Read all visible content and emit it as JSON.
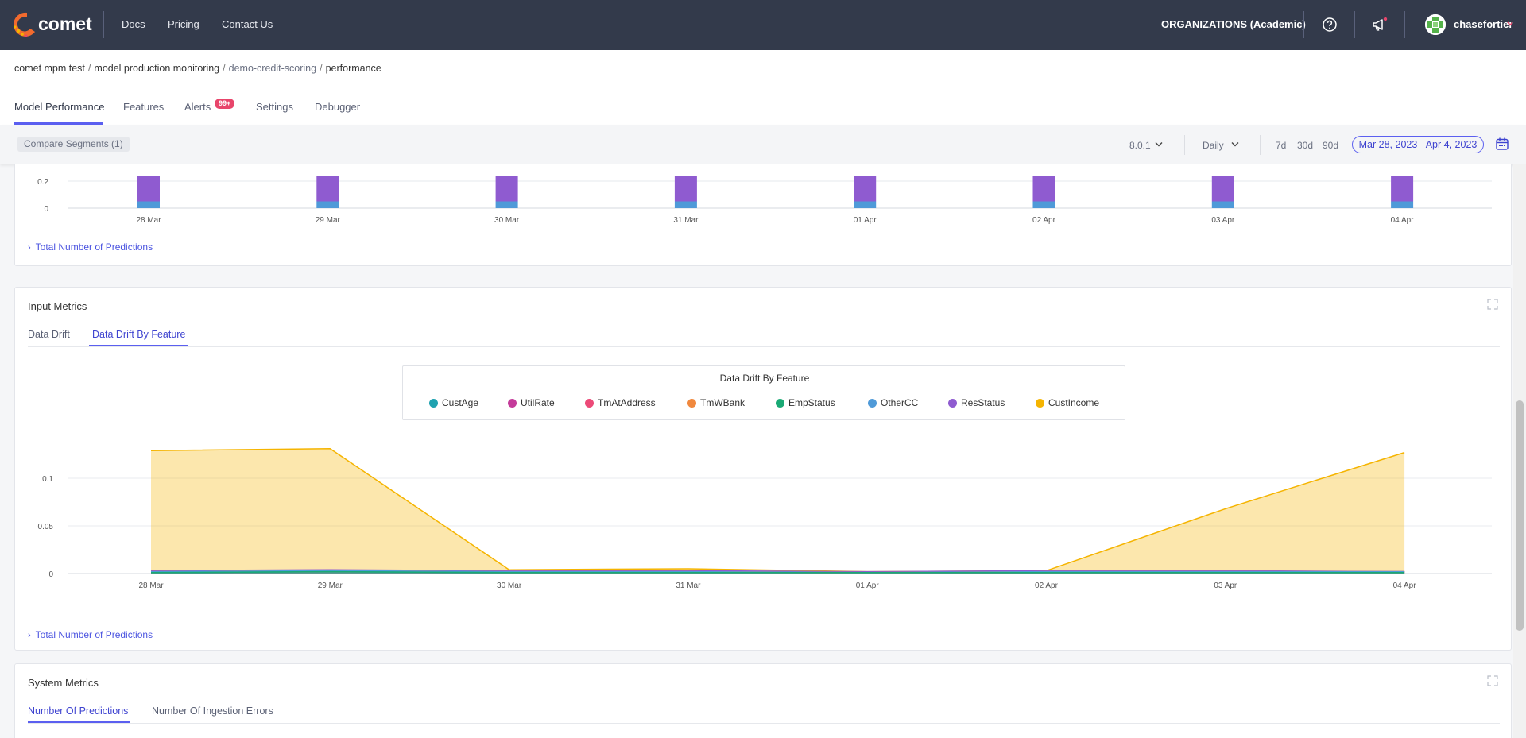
{
  "app": {
    "logo_text": "comet",
    "nav": {
      "docs": "Docs",
      "pricing": "Pricing",
      "contact": "Contact Us"
    },
    "org_label": "ORGANIZATIONS (Academic)",
    "username": "chasefortier",
    "icons": [
      "help-icon",
      "announcement-icon",
      "user-avatar",
      "chevron-down-icon"
    ]
  },
  "breadcrumb": {
    "workspace": "comet mpm test",
    "project": "model production monitoring",
    "model": "demo-credit-scoring",
    "page": "performance"
  },
  "tabs": {
    "model_performance": "Model Performance",
    "features": "Features",
    "alerts": "Alerts",
    "alerts_badge": "99+",
    "settings": "Settings",
    "debugger": "Debugger",
    "active": "Model Performance"
  },
  "filters": {
    "compare_segments": "Compare Segments (1)",
    "version": "8.0.1",
    "granularity": "Daily",
    "range_7d": "7d",
    "range_30d": "30d",
    "range_90d": "90d",
    "date_range": "Mar 28, 2023 - Apr 4, 2023"
  },
  "top_card": {
    "total_predictions_link": "Total Number of Predictions"
  },
  "input_metrics": {
    "title": "Input Metrics",
    "tab_data_drift": "Data Drift",
    "tab_data_drift_by_feature": "Data Drift By Feature",
    "active_tab": "Data Drift By Feature",
    "legend_title": "Data Drift By Feature",
    "total_predictions_link": "Total Number of Predictions"
  },
  "system_metrics": {
    "title": "System Metrics",
    "tab_predictions": "Number Of Predictions",
    "tab_ingestion_errors": "Number Of Ingestion Errors",
    "active_tab": "Number Of Predictions"
  },
  "colors": {
    "accent": "#5b5ff0",
    "topbar": "#333a4b",
    "alert_badge": "#e8456b"
  },
  "chart_data": [
    {
      "type": "bar",
      "stacked": true,
      "categories": [
        "28 Mar",
        "29 Mar",
        "30 Mar",
        "31 Mar",
        "01 Apr",
        "02 Apr",
        "03 Apr",
        "04 Apr"
      ],
      "yticks": [
        "0",
        "0.2"
      ],
      "visible_ylim": [
        0,
        0.24
      ],
      "series": [
        {
          "color": "#4f9ad8",
          "values": [
            0.05,
            0.05,
            0.05,
            0.05,
            0.05,
            0.05,
            0.05,
            0.05
          ]
        },
        {
          "color": "#8f5bd0",
          "values": [
            0.19,
            0.19,
            0.19,
            0.19,
            0.19,
            0.19,
            0.19,
            0.19
          ]
        }
      ],
      "grid": true,
      "note": "chart is scrolled, only lower portion visible"
    },
    {
      "type": "area",
      "title": "Data Drift By Feature",
      "categories": [
        "28 Mar",
        "29 Mar",
        "30 Mar",
        "31 Mar",
        "01 Apr",
        "02 Apr",
        "03 Apr",
        "04 Apr"
      ],
      "yticks": [
        "0",
        "0.05",
        "0.1"
      ],
      "ylim": [
        0,
        0.135
      ],
      "legend": "top-center",
      "grid": true,
      "series": [
        {
          "name": "CustAge",
          "color": "#1fa2b0",
          "values": [
            0.001,
            0.002,
            0.001,
            0.001,
            0.001,
            0.001,
            0.001,
            0.001
          ]
        },
        {
          "name": "UtilRate",
          "color": "#c43b9a",
          "values": [
            0.002,
            0.003,
            0.002,
            0.002,
            0.001,
            0.002,
            0.002,
            0.002
          ]
        },
        {
          "name": "TmAtAddress",
          "color": "#ec4a78",
          "values": [
            0.002,
            0.003,
            0.002,
            0.002,
            0.001,
            0.002,
            0.002,
            0.002
          ]
        },
        {
          "name": "TmWBank",
          "color": "#f0883e",
          "values": [
            0.002,
            0.003,
            0.002,
            0.002,
            0.001,
            0.002,
            0.002,
            0.002
          ]
        },
        {
          "name": "EmpStatus",
          "color": "#19a974",
          "values": [
            0.001,
            0.002,
            0.001,
            0.001,
            0.001,
            0.001,
            0.001,
            0.001
          ]
        },
        {
          "name": "OtherCC",
          "color": "#4f9ad8",
          "values": [
            0.002,
            0.003,
            0.002,
            0.002,
            0.001,
            0.002,
            0.002,
            0.002
          ]
        },
        {
          "name": "ResStatus",
          "color": "#8f5bd0",
          "values": [
            0.003,
            0.004,
            0.003,
            0.003,
            0.002,
            0.003,
            0.003,
            0.002
          ]
        },
        {
          "name": "CustIncome",
          "color": "#f5b400",
          "values": [
            0.129,
            0.131,
            0.004,
            0.005,
            0.002,
            0.003,
            0.068,
            0.127
          ]
        }
      ]
    }
  ]
}
